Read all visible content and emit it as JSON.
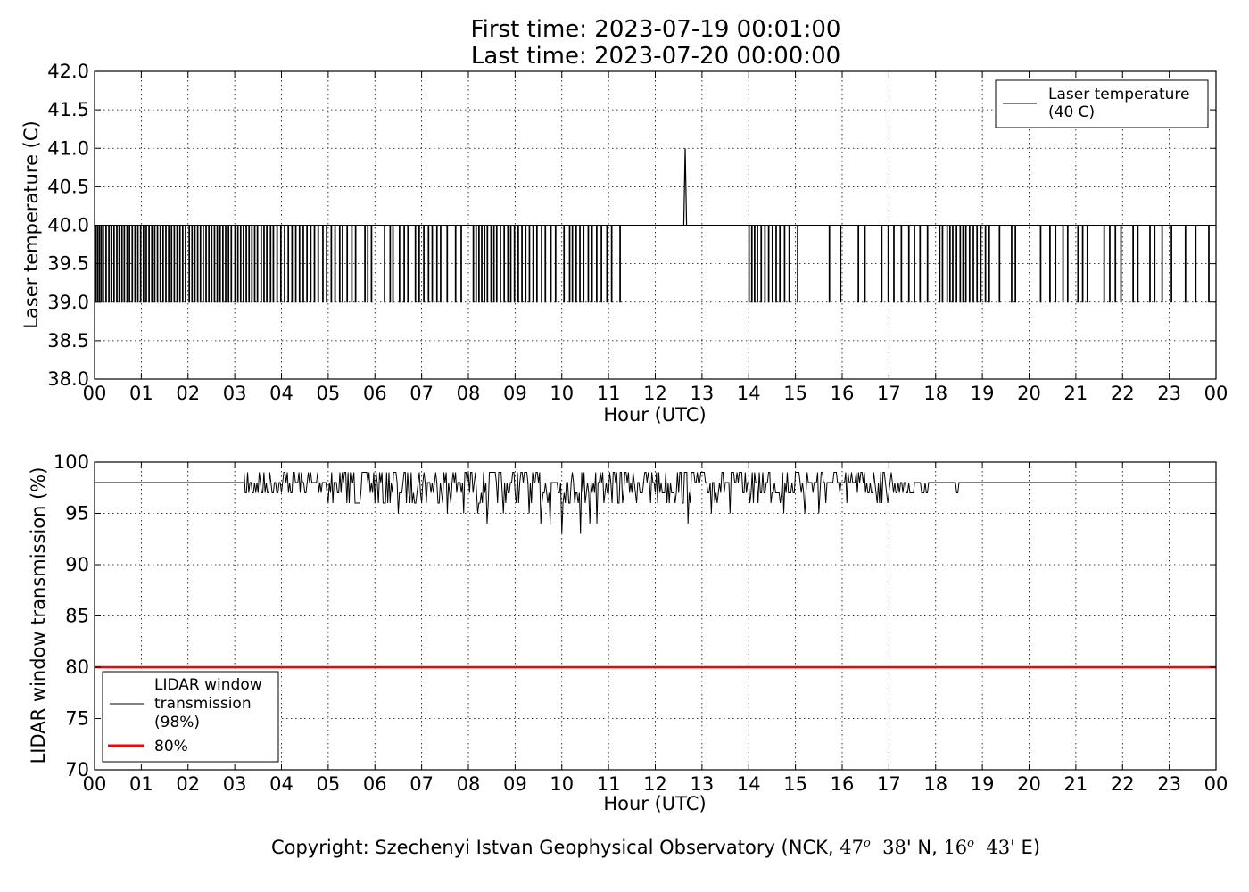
{
  "header": {
    "first_time": "First time: 2023-07-19 00:01:00",
    "last_time": "Last time: 2023-07-20 00:00:00"
  },
  "footer": {
    "copyright_pre": "Copyright: Szechenyi Istvan Geophysical Observatory (NCK, ",
    "lat_deg": "47",
    "lat_min": "38",
    "lat_dir": "N",
    "lon_deg": "16",
    "lon_min": "43",
    "lon_dir": "E"
  },
  "chart_data": [
    {
      "type": "line",
      "ylabel": "Laser temperature (C)",
      "xlabel": "Hour (UTC)",
      "x_ticks": [
        "00",
        "01",
        "02",
        "03",
        "04",
        "05",
        "06",
        "07",
        "08",
        "09",
        "10",
        "11",
        "12",
        "13",
        "14",
        "15",
        "16",
        "17",
        "18",
        "19",
        "20",
        "21",
        "22",
        "23",
        "00"
      ],
      "xlim": [
        0,
        24
      ],
      "ylim": [
        38.0,
        42.0
      ],
      "y_ticks": [
        "38.0",
        "38.5",
        "39.0",
        "39.5",
        "40.0",
        "40.5",
        "41.0",
        "41.5",
        "42.0"
      ],
      "grid": true,
      "legend": {
        "placement": "top-right",
        "entries": [
          "Laser temperature",
          "(40 C)"
        ]
      },
      "series": [
        {
          "name": "Laser temperature (40 C)",
          "color": "#000000",
          "baseline": 40.0,
          "dip_value": 39.0,
          "spike": {
            "x": 12.64,
            "value": 41.0
          },
          "dip_hours": [
            0.02,
            0.06,
            0.1,
            0.14,
            0.18,
            0.24,
            0.3,
            0.35,
            0.41,
            0.47,
            0.52,
            0.58,
            0.63,
            0.69,
            0.74,
            0.8,
            0.86,
            0.92,
            0.98,
            1.04,
            1.1,
            1.16,
            1.22,
            1.28,
            1.34,
            1.4,
            1.46,
            1.52,
            1.58,
            1.64,
            1.7,
            1.76,
            1.82,
            1.88,
            1.94,
            2.02,
            2.08,
            2.14,
            2.2,
            2.26,
            2.32,
            2.38,
            2.44,
            2.5,
            2.56,
            2.62,
            2.68,
            2.74,
            2.8,
            2.86,
            2.92,
            3.0,
            3.06,
            3.12,
            3.18,
            3.24,
            3.3,
            3.36,
            3.42,
            3.48,
            3.56,
            3.62,
            3.68,
            3.76,
            3.82,
            3.9,
            3.98,
            4.06,
            4.14,
            4.22,
            4.3,
            4.38,
            4.46,
            4.54,
            4.62,
            4.7,
            4.78,
            4.88,
            4.96,
            5.06,
            5.14,
            5.24,
            5.3,
            5.4,
            5.5,
            5.58,
            5.78,
            5.84,
            5.92,
            6.2,
            6.32,
            6.38,
            6.52,
            6.62,
            6.7,
            6.86,
            6.94,
            7.04,
            7.14,
            7.22,
            7.32,
            7.4,
            7.54,
            7.72,
            7.84,
            8.1,
            8.16,
            8.22,
            8.28,
            8.34,
            8.4,
            8.48,
            8.54,
            8.6,
            8.68,
            8.76,
            8.84,
            8.9,
            8.98,
            9.06,
            9.14,
            9.22,
            9.3,
            9.38,
            9.46,
            9.56,
            9.64,
            9.76,
            9.86,
            10.04,
            10.16,
            10.22,
            10.3,
            10.38,
            10.46,
            10.56,
            10.64,
            10.74,
            10.84,
            10.96,
            11.06,
            11.24,
            14.0,
            14.06,
            14.12,
            14.18,
            14.26,
            14.34,
            14.42,
            14.5,
            14.58,
            14.66,
            14.76,
            14.86,
            15.04,
            15.72,
            15.96,
            16.34,
            16.48,
            16.84,
            16.98,
            17.1,
            17.26,
            17.42,
            17.54,
            17.66,
            17.82,
            18.08,
            18.14,
            18.24,
            18.3,
            18.36,
            18.44,
            18.52,
            18.58,
            18.64,
            18.72,
            18.8,
            18.88,
            18.96,
            19.06,
            19.14,
            19.36,
            19.62,
            19.7,
            20.24,
            20.44,
            20.56,
            20.72,
            20.82,
            21.04,
            21.14,
            21.24,
            21.6,
            21.72,
            21.84,
            21.96,
            22.22,
            22.32,
            22.58,
            22.68,
            22.84,
            23.04,
            23.34,
            23.56,
            23.84
          ]
        }
      ]
    },
    {
      "type": "line",
      "ylabel": "LIDAR window transmission (%)",
      "xlabel": "Hour (UTC)",
      "x_ticks": [
        "00",
        "01",
        "02",
        "03",
        "04",
        "05",
        "06",
        "07",
        "08",
        "09",
        "10",
        "11",
        "12",
        "13",
        "14",
        "15",
        "16",
        "17",
        "18",
        "19",
        "20",
        "21",
        "22",
        "23",
        "00"
      ],
      "xlim": [
        0,
        24
      ],
      "ylim": [
        70,
        100
      ],
      "y_ticks": [
        "70",
        "75",
        "80",
        "85",
        "90",
        "95",
        "100"
      ],
      "grid": true,
      "legend": {
        "placement": "bottom-left",
        "entries": [
          "LIDAR window",
          "transmission",
          "(98%)",
          "80%"
        ]
      },
      "series": [
        {
          "name": "LIDAR window transmission (98%)",
          "color": "#000000",
          "baseline": 98,
          "noisy_range_hours": [
            3.2,
            18.5
          ],
          "low_points": [
            {
              "x": 3.25,
              "value": 97
            },
            {
              "x": 4.0,
              "value": 97
            },
            {
              "x": 5.1,
              "value": 96
            },
            {
              "x": 5.45,
              "value": 96
            },
            {
              "x": 6.2,
              "value": 96
            },
            {
              "x": 6.5,
              "value": 95
            },
            {
              "x": 7.0,
              "value": 96
            },
            {
              "x": 7.55,
              "value": 95
            },
            {
              "x": 7.9,
              "value": 95
            },
            {
              "x": 8.2,
              "value": 95
            },
            {
              "x": 8.4,
              "value": 94
            },
            {
              "x": 8.75,
              "value": 95
            },
            {
              "x": 9.3,
              "value": 95
            },
            {
              "x": 9.55,
              "value": 94
            },
            {
              "x": 9.75,
              "value": 94
            },
            {
              "x": 10.0,
              "value": 93
            },
            {
              "x": 10.4,
              "value": 93
            },
            {
              "x": 10.6,
              "value": 94
            },
            {
              "x": 10.75,
              "value": 94
            },
            {
              "x": 11.2,
              "value": 96
            },
            {
              "x": 11.9,
              "value": 96
            },
            {
              "x": 12.3,
              "value": 96
            },
            {
              "x": 12.7,
              "value": 94
            },
            {
              "x": 13.2,
              "value": 95
            },
            {
              "x": 13.6,
              "value": 95
            },
            {
              "x": 14.2,
              "value": 96
            },
            {
              "x": 14.75,
              "value": 95
            },
            {
              "x": 15.2,
              "value": 95
            },
            {
              "x": 15.5,
              "value": 95
            },
            {
              "x": 16.1,
              "value": 96
            },
            {
              "x": 16.5,
              "value": 97
            },
            {
              "x": 17.0,
              "value": 97
            }
          ]
        },
        {
          "name": "80%",
          "color": "#ff0000",
          "values": [
            80,
            80
          ],
          "x": [
            0,
            24
          ]
        }
      ]
    }
  ]
}
